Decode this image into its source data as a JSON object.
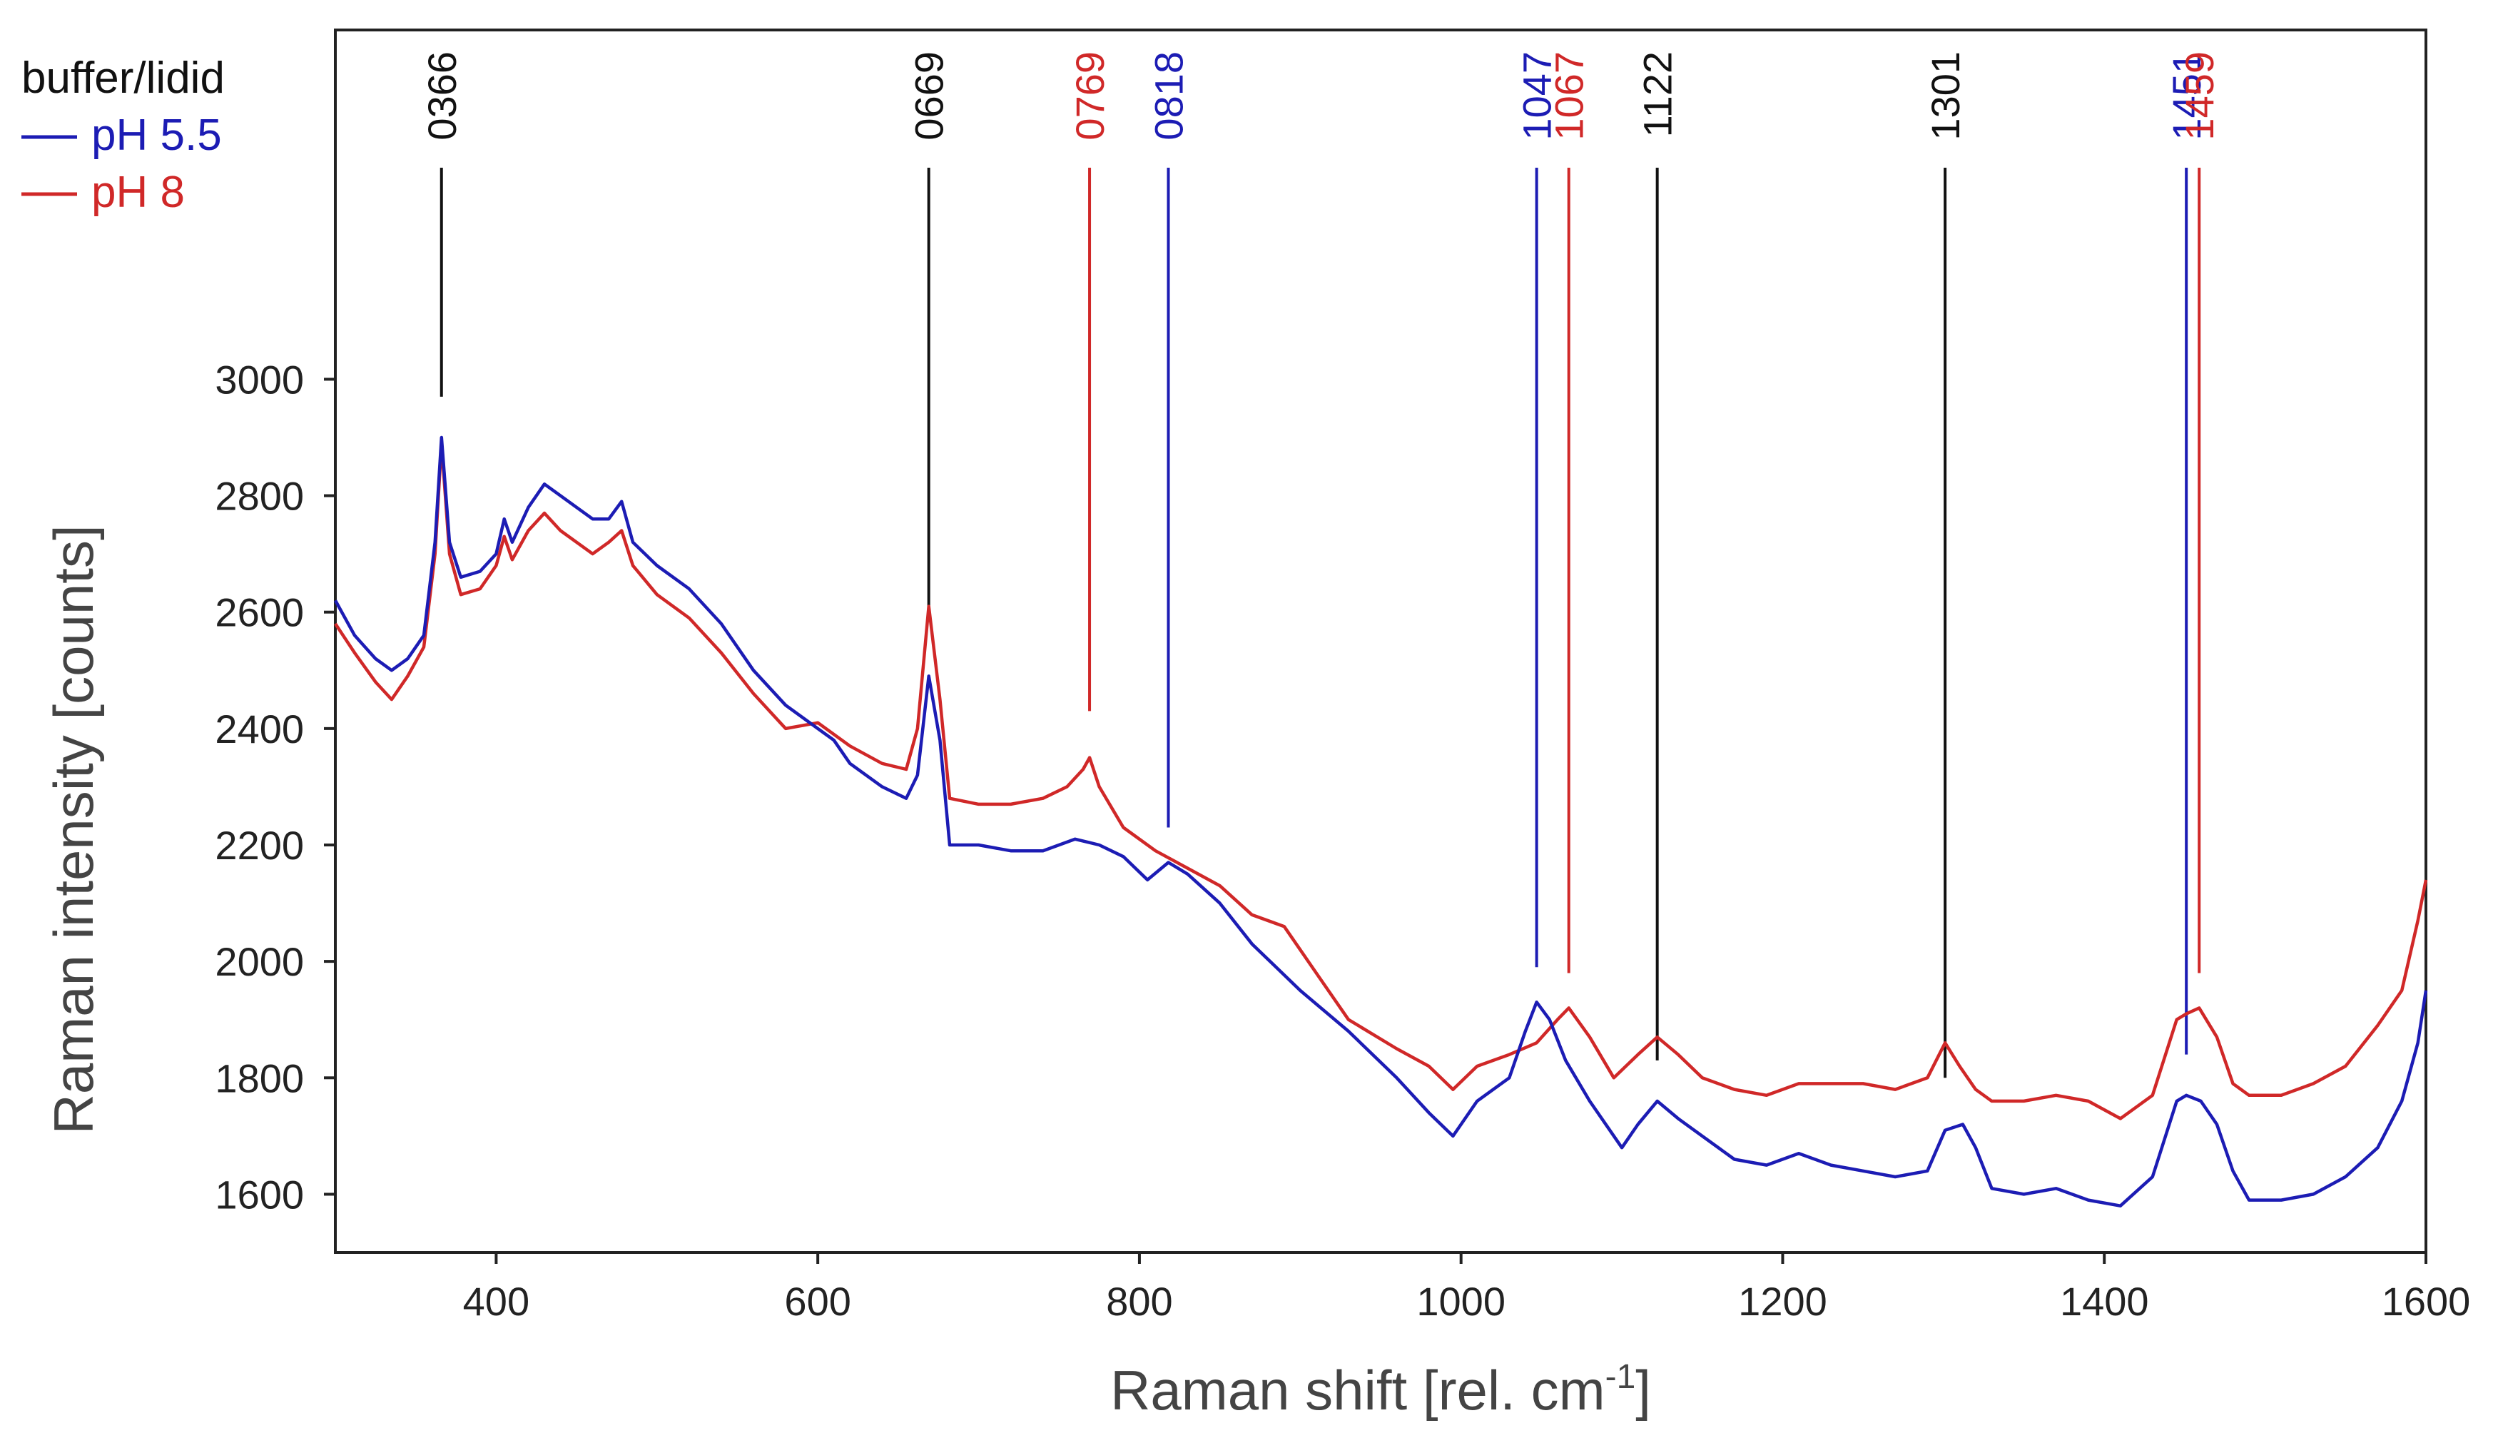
{
  "chart_data": {
    "type": "line",
    "title": "",
    "xlabel_main": "Raman shift [rel. cm",
    "xlabel_sup": "-1",
    "xlabel_end": "]",
    "ylabel": "Raman intensity [counts]",
    "xlim": [
      300,
      1600
    ],
    "ylim": [
      1500,
      3600
    ],
    "x_ticks": [
      400,
      600,
      800,
      1000,
      1200,
      1400,
      1600
    ],
    "y_ticks": [
      1600,
      1800,
      2000,
      2200,
      2400,
      2600,
      2800,
      3000
    ],
    "legend": {
      "title": "buffer/lidid",
      "position": "top-left-outside",
      "entries": [
        {
          "label": "pH 5.5",
          "color": "#1c1cb4"
        },
        {
          "label": "pH 8",
          "color": "#d02828"
        }
      ]
    },
    "series": [
      {
        "name": "pH 5.5",
        "color": "#1c1cb4",
        "points": [
          [
            300,
            2620
          ],
          [
            312,
            2560
          ],
          [
            325,
            2520
          ],
          [
            335,
            2500
          ],
          [
            345,
            2520
          ],
          [
            355,
            2560
          ],
          [
            362,
            2720
          ],
          [
            366,
            2900
          ],
          [
            371,
            2720
          ],
          [
            378,
            2660
          ],
          [
            390,
            2670
          ],
          [
            400,
            2700
          ],
          [
            405,
            2760
          ],
          [
            410,
            2720
          ],
          [
            420,
            2780
          ],
          [
            430,
            2820
          ],
          [
            440,
            2800
          ],
          [
            450,
            2780
          ],
          [
            460,
            2760
          ],
          [
            470,
            2760
          ],
          [
            478,
            2790
          ],
          [
            485,
            2720
          ],
          [
            500,
            2680
          ],
          [
            520,
            2640
          ],
          [
            540,
            2580
          ],
          [
            560,
            2500
          ],
          [
            580,
            2440
          ],
          [
            600,
            2400
          ],
          [
            610,
            2380
          ],
          [
            620,
            2340
          ],
          [
            640,
            2300
          ],
          [
            655,
            2280
          ],
          [
            662,
            2320
          ],
          [
            669,
            2490
          ],
          [
            676,
            2380
          ],
          [
            682,
            2200
          ],
          [
            700,
            2200
          ],
          [
            720,
            2190
          ],
          [
            740,
            2190
          ],
          [
            760,
            2210
          ],
          [
            775,
            2200
          ],
          [
            790,
            2180
          ],
          [
            805,
            2140
          ],
          [
            818,
            2170
          ],
          [
            830,
            2150
          ],
          [
            850,
            2100
          ],
          [
            870,
            2030
          ],
          [
            900,
            1950
          ],
          [
            930,
            1880
          ],
          [
            960,
            1800
          ],
          [
            980,
            1740
          ],
          [
            995,
            1700
          ],
          [
            1010,
            1760
          ],
          [
            1030,
            1800
          ],
          [
            1040,
            1880
          ],
          [
            1047,
            1930
          ],
          [
            1055,
            1900
          ],
          [
            1065,
            1830
          ],
          [
            1080,
            1760
          ],
          [
            1100,
            1680
          ],
          [
            1110,
            1720
          ],
          [
            1122,
            1760
          ],
          [
            1135,
            1730
          ],
          [
            1150,
            1700
          ],
          [
            1170,
            1660
          ],
          [
            1190,
            1650
          ],
          [
            1210,
            1670
          ],
          [
            1230,
            1650
          ],
          [
            1250,
            1640
          ],
          [
            1270,
            1630
          ],
          [
            1290,
            1640
          ],
          [
            1301,
            1710
          ],
          [
            1312,
            1720
          ],
          [
            1320,
            1680
          ],
          [
            1330,
            1610
          ],
          [
            1350,
            1600
          ],
          [
            1370,
            1610
          ],
          [
            1390,
            1590
          ],
          [
            1410,
            1580
          ],
          [
            1430,
            1630
          ],
          [
            1445,
            1760
          ],
          [
            1451,
            1770
          ],
          [
            1460,
            1760
          ],
          [
            1470,
            1720
          ],
          [
            1480,
            1640
          ],
          [
            1490,
            1590
          ],
          [
            1510,
            1590
          ],
          [
            1530,
            1600
          ],
          [
            1550,
            1630
          ],
          [
            1570,
            1680
          ],
          [
            1585,
            1760
          ],
          [
            1595,
            1860
          ],
          [
            1600,
            1950
          ]
        ]
      },
      {
        "name": "pH 8",
        "color": "#d02828",
        "points": [
          [
            300,
            2580
          ],
          [
            312,
            2530
          ],
          [
            325,
            2480
          ],
          [
            335,
            2450
          ],
          [
            345,
            2490
          ],
          [
            355,
            2540
          ],
          [
            362,
            2700
          ],
          [
            366,
            2890
          ],
          [
            371,
            2700
          ],
          [
            378,
            2630
          ],
          [
            390,
            2640
          ],
          [
            400,
            2680
          ],
          [
            405,
            2730
          ],
          [
            410,
            2690
          ],
          [
            420,
            2740
          ],
          [
            430,
            2770
          ],
          [
            440,
            2740
          ],
          [
            450,
            2720
          ],
          [
            460,
            2700
          ],
          [
            470,
            2720
          ],
          [
            478,
            2740
          ],
          [
            485,
            2680
          ],
          [
            500,
            2630
          ],
          [
            520,
            2590
          ],
          [
            540,
            2530
          ],
          [
            560,
            2460
          ],
          [
            580,
            2400
          ],
          [
            600,
            2410
          ],
          [
            620,
            2370
          ],
          [
            640,
            2340
          ],
          [
            655,
            2330
          ],
          [
            662,
            2400
          ],
          [
            669,
            2610
          ],
          [
            676,
            2450
          ],
          [
            682,
            2280
          ],
          [
            700,
            2270
          ],
          [
            720,
            2270
          ],
          [
            740,
            2280
          ],
          [
            755,
            2300
          ],
          [
            765,
            2330
          ],
          [
            769,
            2350
          ],
          [
            775,
            2300
          ],
          [
            790,
            2230
          ],
          [
            810,
            2190
          ],
          [
            830,
            2160
          ],
          [
            850,
            2130
          ],
          [
            870,
            2080
          ],
          [
            890,
            2060
          ],
          [
            910,
            1980
          ],
          [
            930,
            1900
          ],
          [
            960,
            1850
          ],
          [
            980,
            1820
          ],
          [
            995,
            1780
          ],
          [
            1010,
            1820
          ],
          [
            1030,
            1840
          ],
          [
            1047,
            1860
          ],
          [
            1060,
            1900
          ],
          [
            1067,
            1920
          ],
          [
            1080,
            1870
          ],
          [
            1095,
            1800
          ],
          [
            1110,
            1840
          ],
          [
            1122,
            1870
          ],
          [
            1135,
            1840
          ],
          [
            1150,
            1800
          ],
          [
            1170,
            1780
          ],
          [
            1190,
            1770
          ],
          [
            1210,
            1790
          ],
          [
            1230,
            1790
          ],
          [
            1250,
            1790
          ],
          [
            1270,
            1780
          ],
          [
            1290,
            1800
          ],
          [
            1301,
            1860
          ],
          [
            1310,
            1820
          ],
          [
            1320,
            1780
          ],
          [
            1330,
            1760
          ],
          [
            1350,
            1760
          ],
          [
            1370,
            1770
          ],
          [
            1390,
            1760
          ],
          [
            1410,
            1730
          ],
          [
            1430,
            1770
          ],
          [
            1445,
            1900
          ],
          [
            1451,
            1910
          ],
          [
            1459,
            1920
          ],
          [
            1470,
            1870
          ],
          [
            1480,
            1790
          ],
          [
            1490,
            1770
          ],
          [
            1510,
            1770
          ],
          [
            1530,
            1790
          ],
          [
            1550,
            1820
          ],
          [
            1570,
            1890
          ],
          [
            1585,
            1950
          ],
          [
            1595,
            2070
          ],
          [
            1600,
            2140
          ]
        ]
      }
    ],
    "peak_markers": [
      {
        "label": "0366",
        "x": 366,
        "color": "#111111",
        "y_bottom": 2970
      },
      {
        "label": "0669",
        "x": 669,
        "color": "#111111",
        "y_bottom": 2600
      },
      {
        "label": "0769",
        "x": 769,
        "color": "#d02828",
        "y_bottom": 2430
      },
      {
        "label": "0818",
        "x": 818,
        "color": "#1c1cb4",
        "y_bottom": 2230
      },
      {
        "label": "1047",
        "x": 1047,
        "color": "#1c1cb4",
        "y_bottom": 1990
      },
      {
        "label": "1067",
        "x": 1067,
        "color": "#d02828",
        "y_bottom": 1980
      },
      {
        "label": "1122",
        "x": 1122,
        "color": "#111111",
        "y_bottom": 1830
      },
      {
        "label": "1301",
        "x": 1301,
        "color": "#111111",
        "y_bottom": 1800
      },
      {
        "label": "1451",
        "x": 1451,
        "color": "#1c1cb4",
        "y_bottom": 1840
      },
      {
        "label": "1459",
        "x": 1459,
        "color": "#d02828",
        "y_bottom": 1980
      }
    ]
  }
}
